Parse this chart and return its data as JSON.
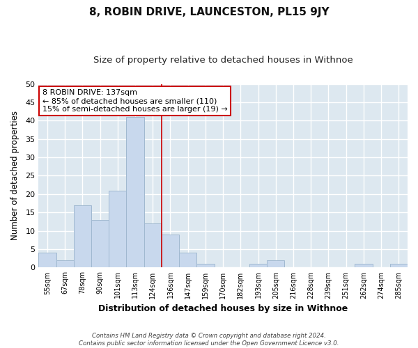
{
  "title": "8, ROBIN DRIVE, LAUNCESTON, PL15 9JY",
  "subtitle": "Size of property relative to detached houses in Withnoe",
  "xlabel": "Distribution of detached houses by size in Withnoe",
  "ylabel": "Number of detached properties",
  "bin_labels": [
    "55sqm",
    "67sqm",
    "78sqm",
    "90sqm",
    "101sqm",
    "113sqm",
    "124sqm",
    "136sqm",
    "147sqm",
    "159sqm",
    "170sqm",
    "182sqm",
    "193sqm",
    "205sqm",
    "216sqm",
    "228sqm",
    "239sqm",
    "251sqm",
    "262sqm",
    "274sqm",
    "285sqm"
  ],
  "bar_values": [
    4,
    2,
    17,
    13,
    21,
    41,
    12,
    9,
    4,
    1,
    0,
    0,
    1,
    2,
    0,
    0,
    0,
    0,
    1,
    0,
    1
  ],
  "bar_color": "#c8d8ed",
  "bar_edge_color": "#a0b8d0",
  "property_line_color": "#cc0000",
  "ylim": [
    0,
    50
  ],
  "yticks": [
    0,
    5,
    10,
    15,
    20,
    25,
    30,
    35,
    40,
    45,
    50
  ],
  "annotation_title": "8 ROBIN DRIVE: 137sqm",
  "annotation_line1": "← 85% of detached houses are smaller (110)",
  "annotation_line2": "15% of semi-detached houses are larger (19) →",
  "annotation_box_color": "#ffffff",
  "annotation_box_edge_color": "#cc0000",
  "footer_line1": "Contains HM Land Registry data © Crown copyright and database right 2024.",
  "footer_line2": "Contains public sector information licensed under the Open Government Licence v3.0.",
  "background_color": "#ffffff",
  "plot_background_color": "#dde8f0",
  "grid_color": "#ffffff",
  "title_fontsize": 11,
  "subtitle_fontsize": 9.5
}
